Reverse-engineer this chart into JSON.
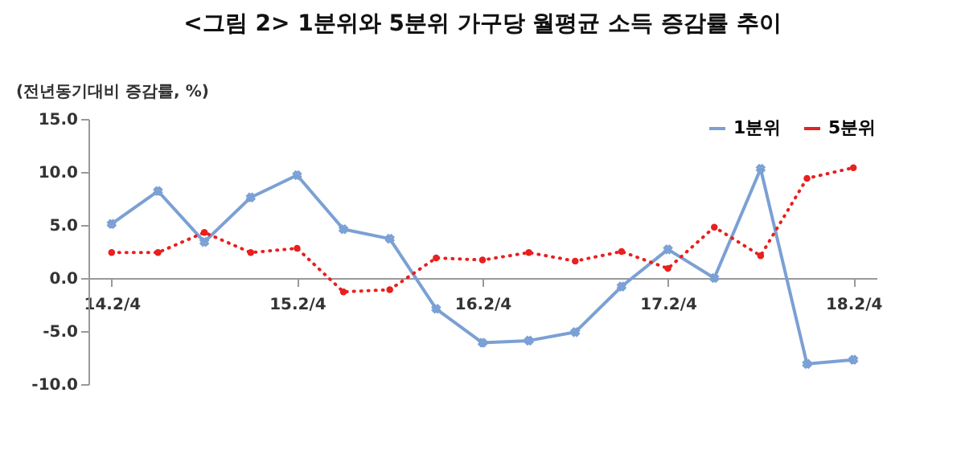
{
  "chart_data": {
    "type": "line",
    "title": "<그림 2> 1분위와 5분위 가구당 월평균 소득 증감률 추이",
    "ylabel": "(전년동기대비 증감률, %)",
    "categories": [
      "14.2/4",
      null,
      null,
      null,
      "15.2/4",
      null,
      null,
      null,
      "16.2/4",
      null,
      null,
      null,
      "17.2/4",
      null,
      null,
      null,
      "18.2/4"
    ],
    "series": [
      {
        "name": "1분위",
        "color": "#7ba0d4",
        "marker": "cross",
        "line_style": "solid",
        "values": [
          5.1,
          8.2,
          3.4,
          7.6,
          9.7,
          4.6,
          3.7,
          -2.9,
          -6.1,
          -5.9,
          -5.1,
          -0.8,
          2.7,
          0.0,
          10.3,
          -8.1,
          -7.7
        ]
      },
      {
        "name": "5분위",
        "color": "#e8201f",
        "marker": "circle",
        "line_style": "dotted",
        "values": [
          2.4,
          2.4,
          4.3,
          2.4,
          2.8,
          -1.3,
          -1.1,
          1.9,
          1.7,
          2.4,
          1.6,
          2.5,
          0.9,
          4.8,
          2.1,
          9.4,
          10.4
        ]
      }
    ],
    "ylim": [
      -10,
      15
    ],
    "yticks": [
      {
        "value": -10,
        "label": "-10.0"
      },
      {
        "value": -5,
        "label": "-5.0"
      },
      {
        "value": 0,
        "label": "0.0"
      },
      {
        "value": 5,
        "label": "5.0"
      },
      {
        "value": 10,
        "label": "10.0"
      },
      {
        "value": 15,
        "label": "15.0"
      }
    ],
    "legend": "top right",
    "grid": false
  }
}
